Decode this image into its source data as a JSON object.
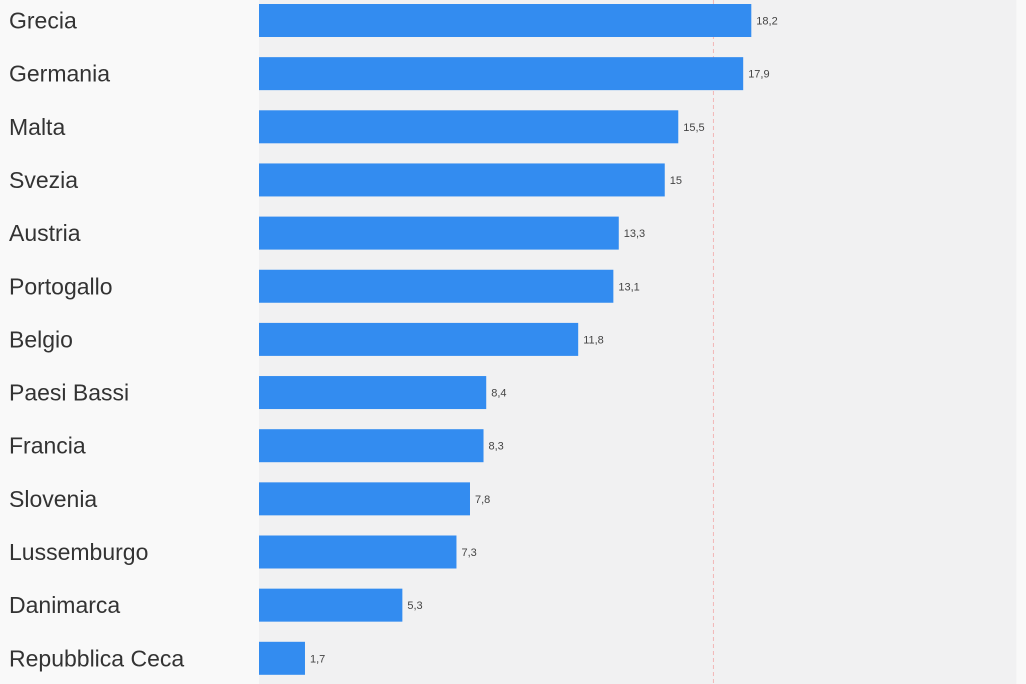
{
  "chart_data": {
    "type": "bar",
    "orientation": "horizontal",
    "title": "",
    "xlabel": "",
    "ylabel": "",
    "categories": [
      "Grecia",
      "Germania",
      "Malta",
      "Svezia",
      "Austria",
      "Portogallo",
      "Belgio",
      "Paesi Bassi",
      "Francia",
      "Slovenia",
      "Lussemburgo",
      "Danimarca",
      "Repubblica Ceca"
    ],
    "values": [
      18.2,
      17.9,
      15.5,
      15,
      13.3,
      13.1,
      11.8,
      8.4,
      8.3,
      7.8,
      7.3,
      5.3,
      1.7
    ],
    "value_labels": [
      "18,2",
      "17,9",
      "15,5",
      "15",
      "13,3",
      "13,1",
      "11,8",
      "8,4",
      "8,3",
      "7,8",
      "7,3",
      "5,3",
      "1,7"
    ],
    "xlim": [
      0,
      28
    ],
    "reference_line": 16.8,
    "grid": false,
    "legend": "none",
    "colors": {
      "bar": "#338cf0",
      "plot_background": "#f1f1f2",
      "page_background": "#f9f9f9",
      "reference_line": "#f2b6b6",
      "category_text": "#333333",
      "value_text": "#444444"
    }
  }
}
